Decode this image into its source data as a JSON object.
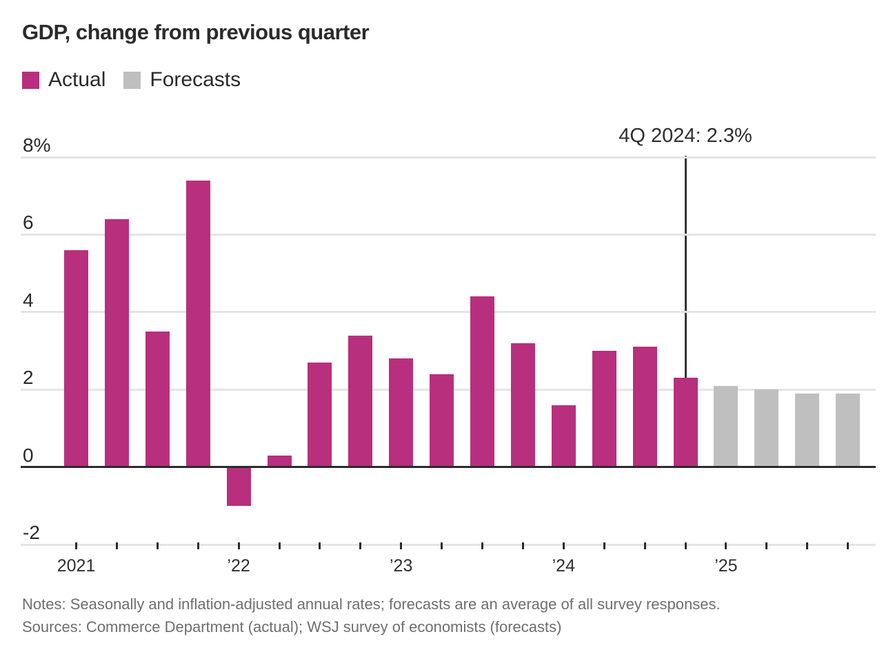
{
  "header": {
    "title": "GDP, change from previous quarter"
  },
  "legend": {
    "items": [
      {
        "label": "Actual",
        "color": "#b82f7d"
      },
      {
        "label": "Forecasts",
        "color": "#bfbfbf"
      }
    ]
  },
  "annotation": {
    "label": "4Q 2024: 2.3%"
  },
  "chart_data": {
    "type": "bar",
    "title": "GDP, change from previous quarter",
    "xlabel": "",
    "ylabel": "",
    "y_unit": "%",
    "ylim": [
      -2,
      8
    ],
    "grid": true,
    "legend_position": "top-left",
    "y_ticks": [
      {
        "value": 8,
        "label": "8%"
      },
      {
        "value": 6,
        "label": "6"
      },
      {
        "value": 4,
        "label": "4"
      },
      {
        "value": 2,
        "label": "2"
      },
      {
        "value": 0,
        "label": "0"
      },
      {
        "value": -2,
        "label": "-2"
      }
    ],
    "x_year_labels": [
      {
        "index": 0,
        "label": "2021"
      },
      {
        "index": 4,
        "label": "’22"
      },
      {
        "index": 8,
        "label": "’23"
      },
      {
        "index": 12,
        "label": "’24"
      },
      {
        "index": 16,
        "label": "’25"
      }
    ],
    "categories": [
      "1Q 2021",
      "2Q 2021",
      "3Q 2021",
      "4Q 2021",
      "1Q 2022",
      "2Q 2022",
      "3Q 2022",
      "4Q 2022",
      "1Q 2023",
      "2Q 2023",
      "3Q 2023",
      "4Q 2023",
      "1Q 2024",
      "2Q 2024",
      "3Q 2024",
      "4Q 2024",
      "1Q 2025",
      "2Q 2025",
      "3Q 2025",
      "4Q 2025"
    ],
    "series": [
      {
        "name": "Actual",
        "color": "#b82f7d",
        "values": [
          5.6,
          6.4,
          3.5,
          7.4,
          -1.0,
          0.3,
          2.7,
          3.4,
          2.8,
          2.4,
          4.4,
          3.2,
          1.6,
          3.0,
          3.1,
          2.3,
          null,
          null,
          null,
          null
        ]
      },
      {
        "name": "Forecasts",
        "color": "#bfbfbf",
        "values": [
          null,
          null,
          null,
          null,
          null,
          null,
          null,
          null,
          null,
          null,
          null,
          null,
          null,
          null,
          null,
          null,
          2.1,
          2.0,
          1.9,
          1.9
        ]
      }
    ],
    "annotation": {
      "text": "4Q 2024: 2.3%",
      "category": "4Q 2024",
      "value": 2.3
    }
  },
  "footer": {
    "notes": "Notes: Seasonally and inflation-adjusted annual rates; forecasts are an average of all survey responses.",
    "sources": "Sources: Commerce Department (actual); WSJ survey of economists (forecasts)"
  },
  "colors": {
    "actual": "#b82f7d",
    "forecast": "#bfbfbf",
    "gridline": "#e4e4e4",
    "axis": "#2a2a2a",
    "text": "#2a2a2a",
    "muted": "#6e6e6e"
  }
}
